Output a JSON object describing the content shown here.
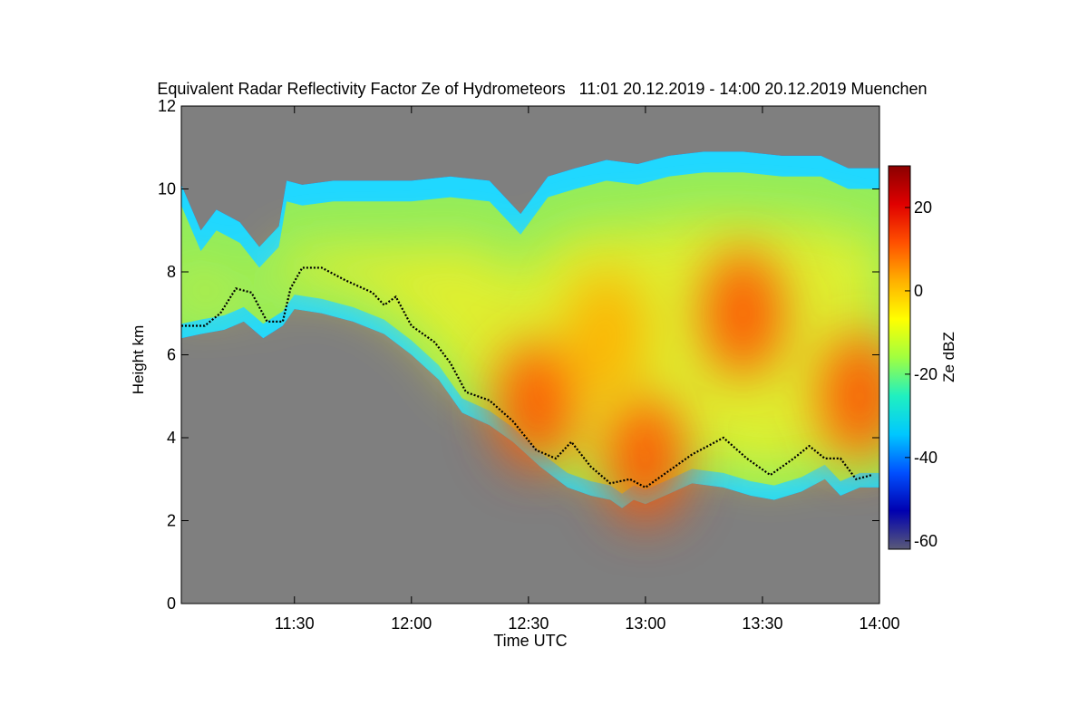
{
  "chart_data": {
    "type": "heatmap",
    "title": "Equivalent Radar Reflectivity Factor Ze of Hydrometeors   11:01 20.12.2019 - 14:00 20.12.2019 Muenchen",
    "xlabel": "Time UTC",
    "ylabel": "Height km",
    "x_range_min": [
      661,
      840
    ],
    "ylim": [
      0,
      12
    ],
    "x_ticks": [
      {
        "min": 690,
        "label": "11:30"
      },
      {
        "min": 720,
        "label": "12:00"
      },
      {
        "min": 750,
        "label": "12:30"
      },
      {
        "min": 780,
        "label": "13:00"
      },
      {
        "min": 810,
        "label": "13:30"
      },
      {
        "min": 840,
        "label": "14:00"
      }
    ],
    "y_ticks": [
      0,
      2,
      4,
      6,
      8,
      10,
      12
    ],
    "colorbar": {
      "label": "Ze dBZ",
      "range": [
        -62,
        30
      ],
      "ticks": [
        -60,
        -40,
        -20,
        0,
        20
      ],
      "colormap": [
        "#5a5a78",
        "#0000b0",
        "#0050ff",
        "#00c8ff",
        "#20f0c0",
        "#a0ff40",
        "#ffff00",
        "#ffb000",
        "#ff5000",
        "#e00000",
        "#8b0000"
      ]
    },
    "background_color": "#7f7f7f",
    "echo_top_km": [
      [
        661,
        10.1
      ],
      [
        666,
        9.0
      ],
      [
        670,
        9.5
      ],
      [
        676,
        9.2
      ],
      [
        681,
        8.6
      ],
      [
        686,
        9.1
      ],
      [
        688,
        10.2
      ],
      [
        692,
        10.1
      ],
      [
        700,
        10.2
      ],
      [
        710,
        10.2
      ],
      [
        720,
        10.2
      ],
      [
        730,
        10.3
      ],
      [
        740,
        10.2
      ],
      [
        748,
        9.4
      ],
      [
        755,
        10.3
      ],
      [
        762,
        10.5
      ],
      [
        770,
        10.7
      ],
      [
        778,
        10.6
      ],
      [
        786,
        10.8
      ],
      [
        795,
        10.9
      ],
      [
        805,
        10.9
      ],
      [
        815,
        10.8
      ],
      [
        825,
        10.8
      ],
      [
        832,
        10.5
      ],
      [
        840,
        10.5
      ]
    ],
    "echo_base_km": [
      [
        661,
        6.4
      ],
      [
        666,
        6.5
      ],
      [
        672,
        6.6
      ],
      [
        677,
        6.8
      ],
      [
        682,
        6.4
      ],
      [
        687,
        6.7
      ],
      [
        690,
        7.1
      ],
      [
        697,
        7.0
      ],
      [
        705,
        6.8
      ],
      [
        713,
        6.5
      ],
      [
        720,
        6.0
      ],
      [
        727,
        5.4
      ],
      [
        733,
        4.6
      ],
      [
        740,
        4.3
      ],
      [
        746,
        3.9
      ],
      [
        753,
        3.3
      ],
      [
        760,
        2.8
      ],
      [
        766,
        2.6
      ],
      [
        771,
        2.5
      ],
      [
        774,
        2.3
      ],
      [
        777,
        2.5
      ],
      [
        780,
        2.4
      ],
      [
        785,
        2.6
      ],
      [
        792,
        2.9
      ],
      [
        800,
        2.8
      ],
      [
        807,
        2.6
      ],
      [
        813,
        2.5
      ],
      [
        820,
        2.7
      ],
      [
        826,
        3.0
      ],
      [
        830,
        2.6
      ],
      [
        835,
        2.8
      ],
      [
        840,
        2.8
      ]
    ],
    "melting_layer_km": [
      [
        661,
        6.7
      ],
      [
        667,
        6.7
      ],
      [
        671,
        7.0
      ],
      [
        675,
        7.6
      ],
      [
        679,
        7.5
      ],
      [
        683,
        6.8
      ],
      [
        687,
        6.8
      ],
      [
        689,
        7.6
      ],
      [
        692,
        8.1
      ],
      [
        697,
        8.1
      ],
      [
        703,
        7.8
      ],
      [
        710,
        7.5
      ],
      [
        713,
        7.2
      ],
      [
        716,
        7.4
      ],
      [
        720,
        6.7
      ],
      [
        726,
        6.3
      ],
      [
        730,
        5.8
      ],
      [
        734,
        5.1
      ],
      [
        740,
        4.9
      ],
      [
        746,
        4.4
      ],
      [
        752,
        3.7
      ],
      [
        757,
        3.5
      ],
      [
        761,
        3.9
      ],
      [
        766,
        3.3
      ],
      [
        771,
        2.9
      ],
      [
        776,
        3.0
      ],
      [
        780,
        2.8
      ],
      [
        786,
        3.2
      ],
      [
        792,
        3.6
      ],
      [
        800,
        4.0
      ],
      [
        806,
        3.5
      ],
      [
        812,
        3.1
      ],
      [
        818,
        3.5
      ],
      [
        822,
        3.8
      ],
      [
        826,
        3.5
      ],
      [
        830,
        3.5
      ],
      [
        834,
        3.0
      ],
      [
        838,
        3.1
      ]
    ],
    "reflectivity_cores": [
      {
        "t_min": 752,
        "h_km": 4.8,
        "dbz": 10
      },
      {
        "t_min": 780,
        "h_km": 3.5,
        "dbz": 10
      },
      {
        "t_min": 805,
        "h_km": 7.0,
        "dbz": 8
      },
      {
        "t_min": 835,
        "h_km": 5.0,
        "dbz": 15
      },
      {
        "t_min": 770,
        "h_km": 6.5,
        "dbz": 0
      }
    ]
  }
}
